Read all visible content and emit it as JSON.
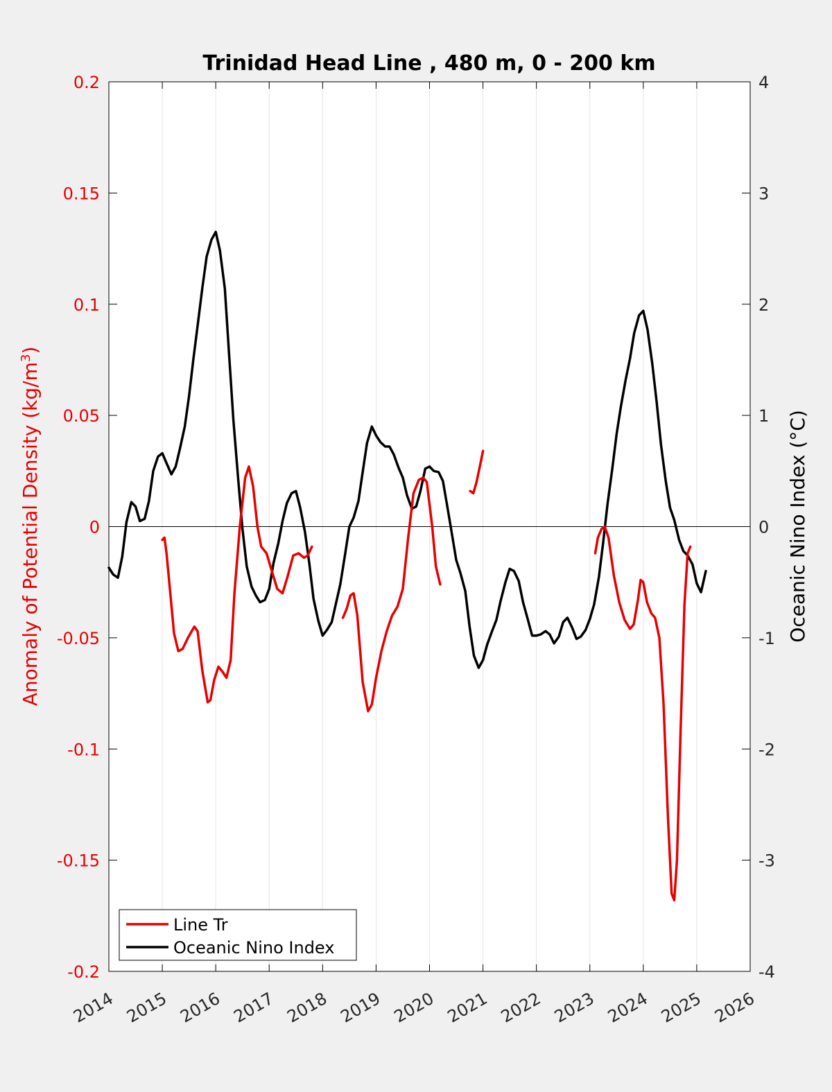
{
  "chart_data": {
    "type": "line",
    "title": "Trinidad Head Line , 480 m, 0 - 200 km",
    "ylabel_left": "Anomaly of Potential Density (kg/m",
    "ylabel_left_sup": "3",
    "ylabel_left_close": ")",
    "ylabel_right": "Oceanic Nino Index (°C)",
    "xlim": [
      2014,
      2026
    ],
    "ylim_left": [
      -0.2,
      0.2
    ],
    "ylim_right": [
      -4,
      4
    ],
    "x_ticks": [
      2014,
      2015,
      2016,
      2017,
      2018,
      2019,
      2020,
      2021,
      2022,
      2023,
      2024,
      2025,
      2026
    ],
    "x_tick_labels": [
      "2014",
      "2015",
      "2016",
      "2017",
      "2018",
      "2019",
      "2020",
      "2021",
      "2022",
      "2023",
      "2024",
      "2025",
      "2026"
    ],
    "y_left_ticks": [
      0.2,
      0.15,
      0.1,
      0.05,
      0,
      -0.05,
      -0.1,
      -0.15,
      -0.2
    ],
    "y_left_tick_labels": [
      "0.2",
      "0.15",
      "0.1",
      "0.05",
      "0",
      "-0.05",
      "-0.1",
      "-0.15",
      "-0.2"
    ],
    "y_right_ticks": [
      4,
      3,
      2,
      1,
      0,
      -1,
      -2,
      -3,
      -4
    ],
    "y_right_tick_labels": [
      "4",
      "3",
      "2",
      "1",
      "0",
      "-1",
      "-2",
      "-3",
      "-4"
    ],
    "grid": "vertical",
    "legend_position": "bottom-left",
    "colors": {
      "left_axis": "#e60000",
      "line_tr": "#e60000",
      "oni": "#000000",
      "zero_line": "#000000"
    },
    "series": [
      {
        "name": "Line Tr",
        "axis": "left",
        "color": "#e60000",
        "segments": [
          [
            [
              2015.0,
              -0.006
            ],
            [
              2015.04,
              -0.005
            ],
            [
              2015.08,
              -0.012
            ],
            [
              2015.15,
              -0.03
            ],
            [
              2015.22,
              -0.048
            ],
            [
              2015.3,
              -0.056
            ],
            [
              2015.38,
              -0.055
            ],
            [
              2015.48,
              -0.05
            ],
            [
              2015.6,
              -0.045
            ],
            [
              2015.66,
              -0.047
            ],
            [
              2015.75,
              -0.065
            ],
            [
              2015.85,
              -0.079
            ],
            [
              2015.9,
              -0.078
            ],
            [
              2015.97,
              -0.069
            ],
            [
              2016.05,
              -0.063
            ],
            [
              2016.12,
              -0.065
            ],
            [
              2016.2,
              -0.068
            ],
            [
              2016.28,
              -0.06
            ],
            [
              2016.35,
              -0.03
            ],
            [
              2016.45,
              0.0
            ],
            [
              2016.55,
              0.022
            ],
            [
              2016.62,
              0.027
            ],
            [
              2016.7,
              0.018
            ],
            [
              2016.78,
              0.0
            ],
            [
              2016.85,
              -0.009
            ],
            [
              2016.95,
              -0.012
            ],
            [
              2017.05,
              -0.02
            ],
            [
              2017.15,
              -0.028
            ],
            [
              2017.25,
              -0.03
            ],
            [
              2017.35,
              -0.022
            ],
            [
              2017.45,
              -0.013
            ],
            [
              2017.55,
              -0.012
            ],
            [
              2017.65,
              -0.014
            ],
            [
              2017.72,
              -0.013
            ],
            [
              2017.8,
              -0.009
            ]
          ],
          [
            [
              2018.38,
              -0.041
            ],
            [
              2018.45,
              -0.037
            ],
            [
              2018.52,
              -0.031
            ],
            [
              2018.58,
              -0.03
            ],
            [
              2018.65,
              -0.04
            ],
            [
              2018.75,
              -0.07
            ],
            [
              2018.85,
              -0.083
            ],
            [
              2018.92,
              -0.08
            ],
            [
              2019.0,
              -0.068
            ],
            [
              2019.1,
              -0.056
            ],
            [
              2019.2,
              -0.047
            ],
            [
              2019.3,
              -0.04
            ],
            [
              2019.4,
              -0.036
            ],
            [
              2019.5,
              -0.028
            ],
            [
              2019.6,
              -0.005
            ],
            [
              2019.7,
              0.015
            ],
            [
              2019.8,
              0.021
            ],
            [
              2019.88,
              0.022
            ],
            [
              2019.95,
              0.02
            ],
            [
              2020.05,
              0.0
            ],
            [
              2020.12,
              -0.018
            ],
            [
              2020.2,
              -0.026
            ]
          ],
          [
            [
              2020.76,
              0.016
            ],
            [
              2020.82,
              0.015
            ],
            [
              2020.88,
              0.02
            ],
            [
              2020.95,
              0.028
            ],
            [
              2021.0,
              0.034
            ]
          ],
          [
            [
              2023.1,
              -0.012
            ],
            [
              2023.15,
              -0.005
            ],
            [
              2023.22,
              -0.001
            ],
            [
              2023.28,
              0.0
            ],
            [
              2023.35,
              -0.005
            ],
            [
              2023.45,
              -0.022
            ],
            [
              2023.55,
              -0.034
            ],
            [
              2023.65,
              -0.042
            ],
            [
              2023.75,
              -0.046
            ],
            [
              2023.82,
              -0.044
            ],
            [
              2023.9,
              -0.033
            ],
            [
              2023.95,
              -0.024
            ],
            [
              2024.0,
              -0.025
            ],
            [
              2024.07,
              -0.034
            ],
            [
              2024.15,
              -0.039
            ],
            [
              2024.22,
              -0.041
            ],
            [
              2024.3,
              -0.05
            ],
            [
              2024.38,
              -0.08
            ],
            [
              2024.46,
              -0.13
            ],
            [
              2024.53,
              -0.165
            ],
            [
              2024.58,
              -0.168
            ],
            [
              2024.63,
              -0.15
            ],
            [
              2024.7,
              -0.09
            ],
            [
              2024.77,
              -0.035
            ],
            [
              2024.83,
              -0.012
            ],
            [
              2024.88,
              -0.009
            ]
          ]
        ]
      },
      {
        "name": "Oceanic Nino Index",
        "axis": "right",
        "color": "#000000",
        "segments": [
          [
            [
              2014.0,
              -0.37
            ],
            [
              2014.08,
              -0.43
            ],
            [
              2014.17,
              -0.46
            ],
            [
              2014.25,
              -0.27
            ],
            [
              2014.33,
              0.04
            ],
            [
              2014.42,
              0.22
            ],
            [
              2014.5,
              0.18
            ],
            [
              2014.58,
              0.05
            ],
            [
              2014.67,
              0.07
            ],
            [
              2014.75,
              0.23
            ],
            [
              2014.83,
              0.5
            ],
            [
              2014.92,
              0.63
            ],
            [
              2015.0,
              0.66
            ],
            [
              2015.08,
              0.57
            ],
            [
              2015.17,
              0.47
            ],
            [
              2015.25,
              0.54
            ],
            [
              2015.33,
              0.7
            ],
            [
              2015.42,
              0.9
            ],
            [
              2015.5,
              1.17
            ],
            [
              2015.58,
              1.5
            ],
            [
              2015.67,
              1.84
            ],
            [
              2015.75,
              2.15
            ],
            [
              2015.83,
              2.43
            ],
            [
              2015.92,
              2.58
            ],
            [
              2016.0,
              2.65
            ],
            [
              2016.08,
              2.48
            ],
            [
              2016.17,
              2.14
            ],
            [
              2016.25,
              1.55
            ],
            [
              2016.33,
              0.96
            ],
            [
              2016.42,
              0.43
            ],
            [
              2016.5,
              -0.02
            ],
            [
              2016.58,
              -0.36
            ],
            [
              2016.67,
              -0.54
            ],
            [
              2016.75,
              -0.62
            ],
            [
              2016.83,
              -0.68
            ],
            [
              2016.92,
              -0.66
            ],
            [
              2017.0,
              -0.56
            ],
            [
              2017.08,
              -0.33
            ],
            [
              2017.17,
              -0.15
            ],
            [
              2017.25,
              0.05
            ],
            [
              2017.33,
              0.21
            ],
            [
              2017.42,
              0.3
            ],
            [
              2017.5,
              0.32
            ],
            [
              2017.58,
              0.17
            ],
            [
              2017.67,
              -0.05
            ],
            [
              2017.75,
              -0.33
            ],
            [
              2017.83,
              -0.65
            ],
            [
              2017.92,
              -0.85
            ],
            [
              2018.0,
              -0.98
            ],
            [
              2018.08,
              -0.93
            ],
            [
              2018.17,
              -0.86
            ],
            [
              2018.25,
              -0.69
            ],
            [
              2018.33,
              -0.52
            ],
            [
              2018.42,
              -0.25
            ],
            [
              2018.5,
              0.0
            ],
            [
              2018.58,
              0.08
            ],
            [
              2018.67,
              0.23
            ],
            [
              2018.75,
              0.49
            ],
            [
              2018.83,
              0.75
            ],
            [
              2018.92,
              0.9
            ],
            [
              2019.0,
              0.82
            ],
            [
              2019.08,
              0.76
            ],
            [
              2019.17,
              0.72
            ],
            [
              2019.25,
              0.72
            ],
            [
              2019.33,
              0.65
            ],
            [
              2019.42,
              0.53
            ],
            [
              2019.5,
              0.44
            ],
            [
              2019.58,
              0.28
            ],
            [
              2019.67,
              0.16
            ],
            [
              2019.75,
              0.18
            ],
            [
              2019.83,
              0.32
            ],
            [
              2019.92,
              0.52
            ],
            [
              2020.0,
              0.54
            ],
            [
              2020.08,
              0.5
            ],
            [
              2020.17,
              0.49
            ],
            [
              2020.25,
              0.41
            ],
            [
              2020.33,
              0.19
            ],
            [
              2020.42,
              -0.07
            ],
            [
              2020.5,
              -0.3
            ],
            [
              2020.58,
              -0.42
            ],
            [
              2020.67,
              -0.58
            ],
            [
              2020.75,
              -0.9
            ],
            [
              2020.83,
              -1.16
            ],
            [
              2020.92,
              -1.27
            ],
            [
              2021.0,
              -1.2
            ],
            [
              2021.08,
              -1.06
            ],
            [
              2021.17,
              -0.94
            ],
            [
              2021.25,
              -0.84
            ],
            [
              2021.33,
              -0.67
            ],
            [
              2021.42,
              -0.5
            ],
            [
              2021.5,
              -0.38
            ],
            [
              2021.58,
              -0.4
            ],
            [
              2021.67,
              -0.49
            ],
            [
              2021.75,
              -0.68
            ],
            [
              2021.83,
              -0.82
            ],
            [
              2021.92,
              -0.98
            ],
            [
              2022.0,
              -0.98
            ],
            [
              2022.08,
              -0.97
            ],
            [
              2022.17,
              -0.94
            ],
            [
              2022.25,
              -0.97
            ],
            [
              2022.33,
              -1.05
            ],
            [
              2022.42,
              -0.99
            ],
            [
              2022.5,
              -0.86
            ],
            [
              2022.58,
              -0.82
            ],
            [
              2022.67,
              -0.91
            ],
            [
              2022.75,
              -1.01
            ],
            [
              2022.83,
              -0.99
            ],
            [
              2022.92,
              -0.93
            ],
            [
              2023.0,
              -0.83
            ],
            [
              2023.08,
              -0.7
            ],
            [
              2023.17,
              -0.45
            ],
            [
              2023.25,
              -0.14
            ],
            [
              2023.33,
              0.2
            ],
            [
              2023.42,
              0.52
            ],
            [
              2023.5,
              0.83
            ],
            [
              2023.58,
              1.08
            ],
            [
              2023.67,
              1.32
            ],
            [
              2023.75,
              1.51
            ],
            [
              2023.83,
              1.74
            ],
            [
              2023.92,
              1.9
            ],
            [
              2024.0,
              1.94
            ],
            [
              2024.08,
              1.77
            ],
            [
              2024.17,
              1.46
            ],
            [
              2024.25,
              1.12
            ],
            [
              2024.33,
              0.74
            ],
            [
              2024.42,
              0.41
            ],
            [
              2024.5,
              0.17
            ],
            [
              2024.58,
              0.06
            ],
            [
              2024.67,
              -0.12
            ],
            [
              2024.75,
              -0.22
            ],
            [
              2024.83,
              -0.26
            ],
            [
              2024.92,
              -0.34
            ],
            [
              2025.0,
              -0.51
            ],
            [
              2025.08,
              -0.59
            ],
            [
              2025.17,
              -0.4
            ]
          ]
        ]
      }
    ]
  }
}
